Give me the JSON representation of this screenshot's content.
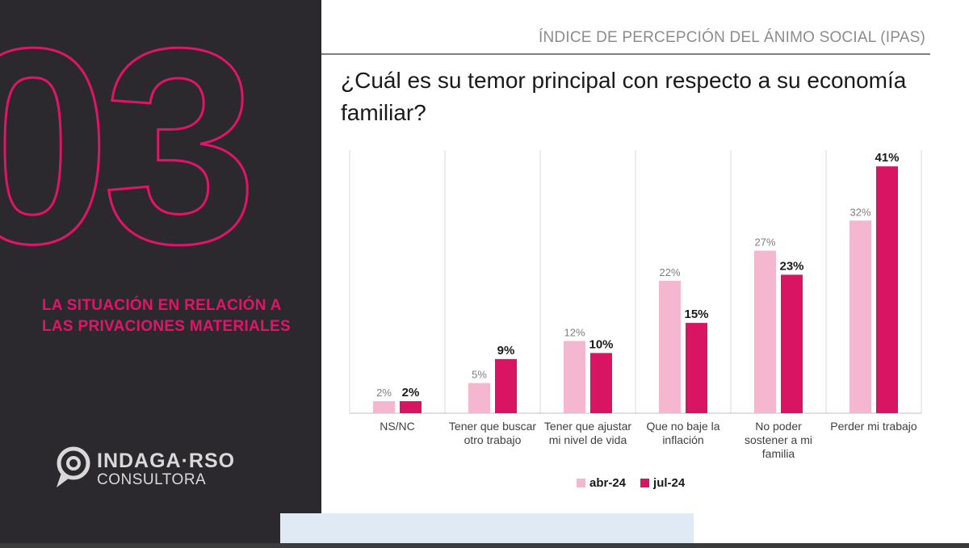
{
  "section": {
    "number": "03",
    "title": "LA SITUACIÓN EN RELACIÓN A LAS PRIVACIONES MATERIALES"
  },
  "brand": {
    "name": "INDAGA·RSO",
    "sub": "CONSULTORA"
  },
  "header": {
    "title": "ÍNDICE DE PERCEPCIÓN DEL ÁNIMO SOCIAL (IPAS)",
    "question": "¿Cuál es su temor principal con respecto a su economía familiar?"
  },
  "colors": {
    "accent": "#e0156a",
    "abr": "#f4b7cf",
    "jul": "#d91563",
    "panel": "#2b292d"
  },
  "chart_data": {
    "type": "bar",
    "title": "¿Cuál es su temor principal con respecto a su economía familiar?",
    "categories": [
      [
        "NS/NC"
      ],
      [
        "Tener que buscar",
        "otro trabajo"
      ],
      [
        "Tener que ajustar",
        "mi nivel de vida"
      ],
      [
        "Que no baje la",
        "inflación"
      ],
      [
        "No poder",
        "sostener a mi",
        "familia"
      ],
      [
        "Perder mi trabajo"
      ]
    ],
    "series": [
      {
        "name": "abr-24",
        "values": [
          2,
          5,
          12,
          22,
          27,
          32
        ],
        "labels": [
          "2%",
          "5%",
          "12%",
          "22%",
          "27%",
          "32%"
        ]
      },
      {
        "name": "jul-24",
        "values": [
          2,
          9,
          10,
          15,
          23,
          41
        ],
        "labels": [
          "2%",
          "9%",
          "10%",
          "15%",
          "23%",
          "41%"
        ]
      }
    ],
    "ylim": [
      0,
      45
    ],
    "xlabel": "",
    "ylabel": "",
    "legend": "bottom"
  }
}
